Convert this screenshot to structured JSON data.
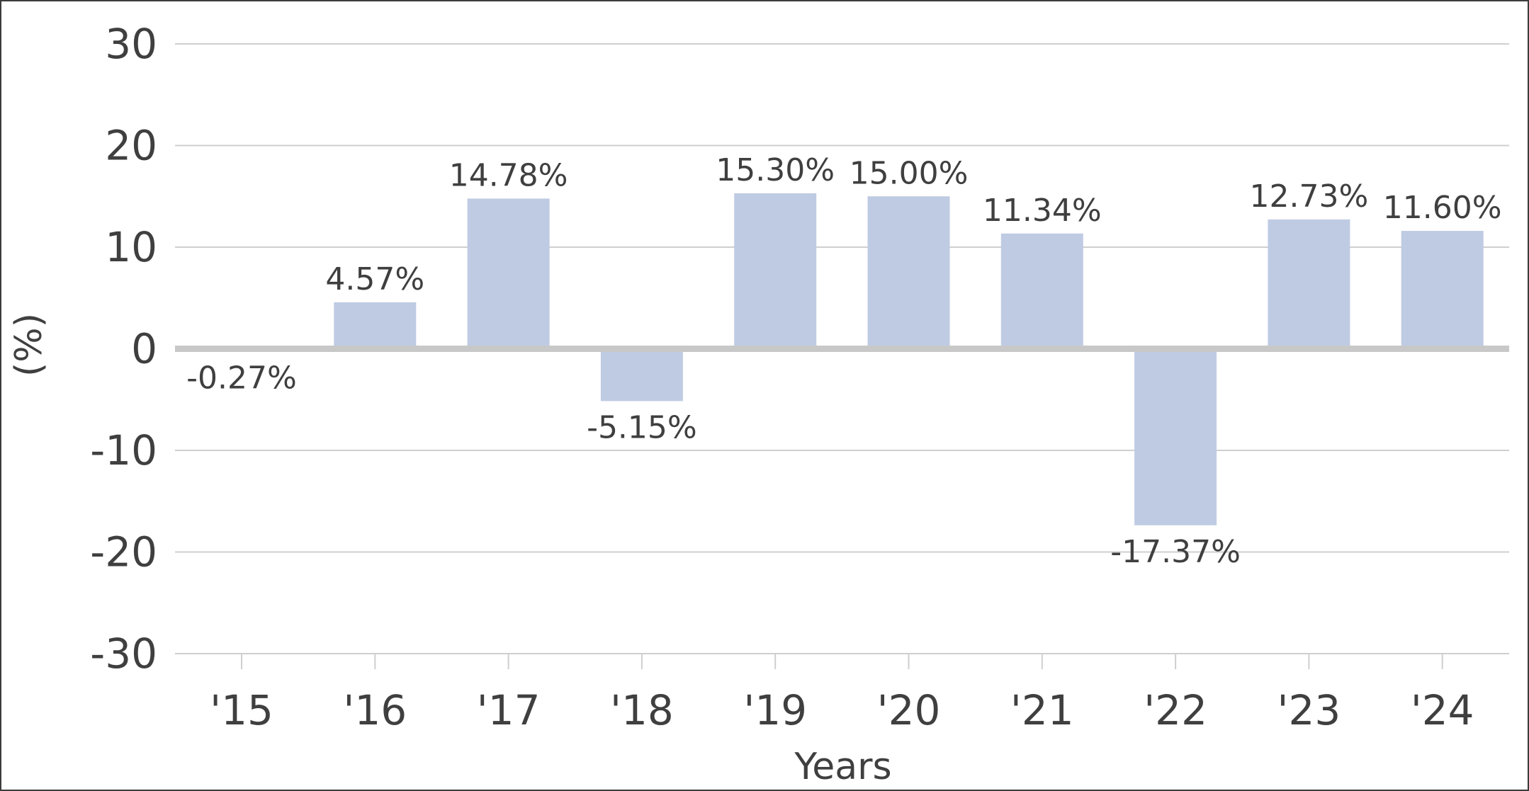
{
  "chart_data": {
    "type": "bar",
    "title": "",
    "xlabel": "Years",
    "ylabel": "(%)",
    "categories": [
      "'15",
      "'16",
      "'17",
      "'18",
      "'19",
      "'20",
      "'21",
      "'22",
      "'23",
      "'24"
    ],
    "values": [
      -0.27,
      4.57,
      14.78,
      -5.15,
      15.3,
      15.0,
      11.34,
      -17.37,
      12.73,
      11.6
    ],
    "data_labels": [
      "-0.27%",
      "4.57%",
      "14.78%",
      "-5.15%",
      "15.30%",
      "15.00%",
      "11.34%",
      "-17.37%",
      "12.73%",
      "11.60%"
    ],
    "ylim": [
      -30,
      30
    ],
    "yticks": [
      30,
      20,
      10,
      0,
      -10,
      -20,
      -30
    ],
    "ytick_labels": [
      "30",
      "20",
      "10",
      "0",
      "-10",
      "-20",
      "-30"
    ],
    "grid": true,
    "legend": "none",
    "colors": {
      "bar": "#bfcbe3",
      "grid": "#cfcfcf",
      "zero_line": "#c8c8c8",
      "text": "#3f3f3f",
      "frame": "#3c3c3c"
    }
  }
}
